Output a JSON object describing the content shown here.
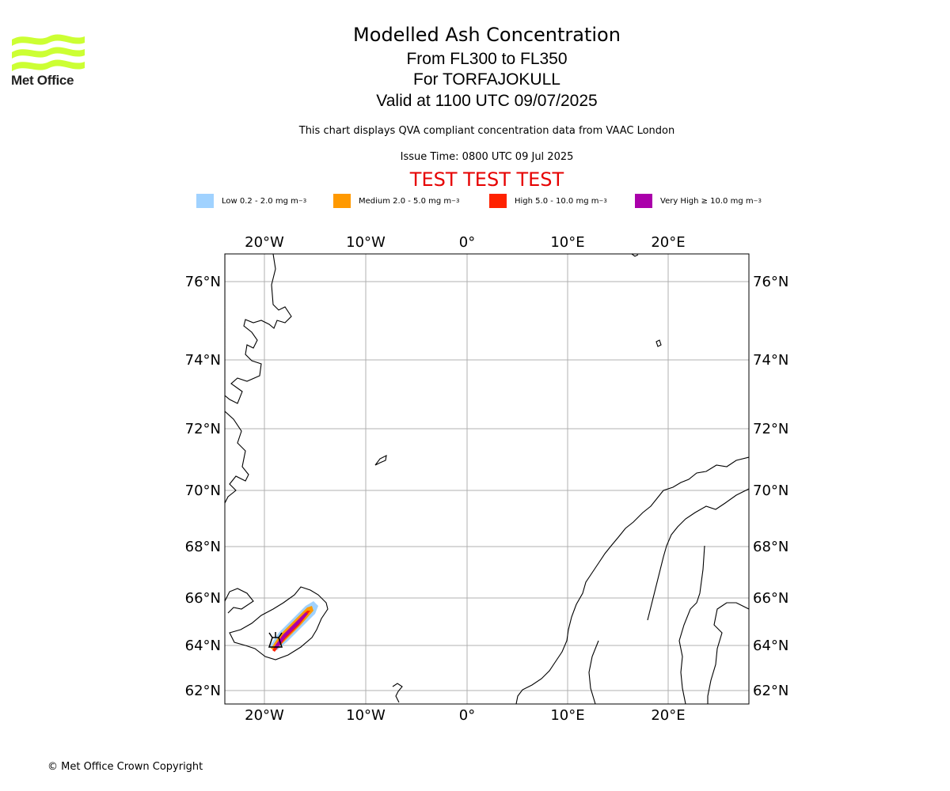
{
  "header": {
    "logo_text": "Met Office",
    "title": "Modelled Ash Concentration",
    "levels": "From FL300 to FL350",
    "volcano": "For TORFAJOKULL",
    "valid": "Valid at 1100 UTC 09/07/2025",
    "description": "This chart displays QVA compliant concentration data from VAAC London",
    "issue_time": "Issue Time: 0800 UTC 09 Jul 2025",
    "test_banner": "TEST TEST TEST",
    "logo_color": "#ccff33",
    "test_color": "#e60000"
  },
  "legend": [
    {
      "label": "Low 0.2 - 2.0 mg m",
      "unit_sup": "−3",
      "color": "#a0d2ff"
    },
    {
      "label": "Medium 2.0 - 5.0 mg m",
      "unit_sup": "−3",
      "color": "#ff9900"
    },
    {
      "label": "High 5.0 - 10.0 mg m",
      "unit_sup": "−3",
      "color": "#ff2200"
    },
    {
      "label": "Very High  ≥  10.0 mg m",
      "unit_sup": "−3",
      "color": "#aa00aa"
    }
  ],
  "map": {
    "lon_labels": [
      "20°W",
      "10°W",
      "0°",
      "10°E",
      "20°E"
    ],
    "lat_labels": [
      "76°N",
      "74°N",
      "72°N",
      "70°N",
      "68°N",
      "66°N",
      "64°N",
      "62°N"
    ],
    "gridlines": true,
    "volcano_icon": "volcano-icon"
  },
  "footer": {
    "copyright": "© Met Office Crown Copyright"
  }
}
